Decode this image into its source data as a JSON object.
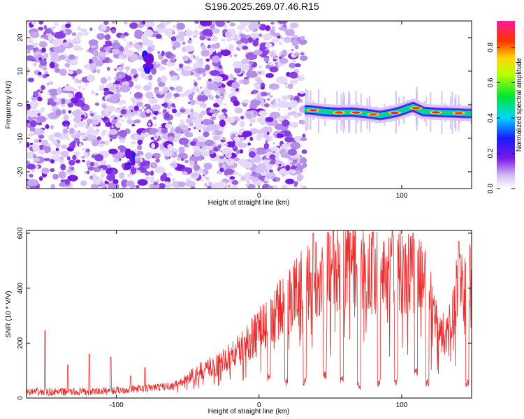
{
  "title": "S196.2025.269.07.46.R15",
  "chart_data": [
    {
      "type": "heatmap",
      "name": "spectrogram",
      "xlabel": "Height of straight line (km)",
      "ylabel": "Frequency (Hz)",
      "xlim": [
        -163,
        149
      ],
      "ylim": [
        -25,
        25
      ],
      "xticks": [
        -100,
        0,
        100
      ],
      "yticks": [
        -20,
        -10,
        0,
        10,
        20
      ],
      "signal_track": {
        "x_start": 32,
        "x_end": 149,
        "x": [
          35,
          45,
          55,
          65,
          75,
          85,
          90,
          95,
          100,
          105,
          108,
          115,
          125,
          135,
          145
        ],
        "freq": [
          -1.5,
          -2.0,
          -2.3,
          -2.2,
          -2.6,
          -3.2,
          -2.8,
          -2.4,
          -1.8,
          -1.0,
          -0.6,
          -2.0,
          -2.3,
          -2.4,
          -2.6
        ]
      },
      "scattered_noise_x_range": [
        -163,
        32
      ],
      "colorbar": {
        "label": "Normalized spectral amplitude",
        "range": [
          0.0,
          0.95
        ],
        "ticks": [
          "0.0",
          "0.2",
          "0.4",
          "0.6",
          "0.8"
        ],
        "tick_values": [
          0.0,
          0.2,
          0.4,
          0.6,
          0.8
        ]
      }
    },
    {
      "type": "line",
      "name": "snr",
      "xlabel": "Height of straight line (km)",
      "ylabel": "SNR (10 * V/V)",
      "xlim": [
        -163,
        149
      ],
      "ylim": [
        0,
        610
      ],
      "xticks": [
        -100,
        0,
        100
      ],
      "yticks": [
        0,
        200,
        400,
        600
      ],
      "color": "#ee2c2c",
      "envelope_x": [
        -163,
        -120,
        -100,
        -80,
        -60,
        -50,
        -40,
        -30,
        -20,
        -10,
        0,
        10,
        20,
        30,
        40,
        50,
        60,
        80,
        100,
        110,
        115,
        120,
        125,
        130,
        135,
        140,
        145,
        149
      ],
      "envelope_y": [
        22,
        22,
        28,
        35,
        45,
        70,
        100,
        120,
        150,
        190,
        250,
        300,
        350,
        410,
        450,
        460,
        470,
        480,
        470,
        460,
        420,
        350,
        280,
        220,
        330,
        400,
        440,
        470
      ],
      "spikes": [
        {
          "x": -150,
          "y": 245
        },
        {
          "x": -134,
          "y": 120
        },
        {
          "x": -119,
          "y": 160
        },
        {
          "x": -104,
          "y": 150
        },
        {
          "x": -90,
          "y": 80
        },
        {
          "x": -80,
          "y": 110
        },
        {
          "x": 38,
          "y": 600
        },
        {
          "x": 52,
          "y": 610
        },
        {
          "x": 64,
          "y": 600
        },
        {
          "x": 80,
          "y": 605
        },
        {
          "x": 94,
          "y": 590
        },
        {
          "x": 108,
          "y": 600
        },
        {
          "x": 140,
          "y": 570
        }
      ],
      "dropouts": [
        {
          "x": 7,
          "y": 60
        },
        {
          "x": 19,
          "y": 40
        },
        {
          "x": 32,
          "y": 45
        },
        {
          "x": 46,
          "y": 70
        },
        {
          "x": 58,
          "y": 50
        },
        {
          "x": 70,
          "y": 30
        },
        {
          "x": 84,
          "y": 40
        },
        {
          "x": 96,
          "y": 45
        },
        {
          "x": 110,
          "y": 80
        },
        {
          "x": 118,
          "y": 40
        },
        {
          "x": 146,
          "y": 40
        }
      ]
    }
  ]
}
